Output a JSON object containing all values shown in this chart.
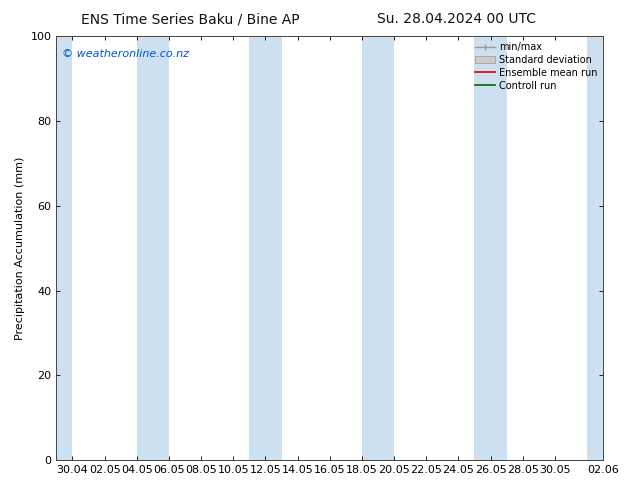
{
  "title_left": "ENS Time Series Baku / Bine AP",
  "title_right": "Su. 28.04.2024 00 UTC",
  "ylabel": "Precipitation Accumulation (mm)",
  "ylim": [
    0,
    100
  ],
  "yticks": [
    0,
    20,
    40,
    60,
    80,
    100
  ],
  "watermark": "© weatheronline.co.nz",
  "watermark_color": "#0055cc",
  "background_color": "#ffffff",
  "plot_bg_color": "#ffffff",
  "shaded_band_color": "#cce0f0",
  "xtick_labels": [
    "30.04",
    "02.05",
    "04.05",
    "06.05",
    "08.05",
    "10.05",
    "12.05",
    "14.05",
    "16.05",
    "18.05",
    "20.05",
    "22.05",
    "24.05",
    "26.05",
    "28.05",
    "30.05",
    "02.06"
  ],
  "shaded_bands": [
    [
      0,
      1
    ],
    [
      5,
      7
    ],
    [
      12,
      14
    ],
    [
      19,
      21
    ],
    [
      26,
      28
    ],
    [
      33,
      35
    ]
  ],
  "x_min": 0,
  "x_max": 34,
  "xtick_positions": [
    1,
    3,
    5,
    7,
    9,
    11,
    13,
    15,
    17,
    19,
    21,
    23,
    25,
    27,
    29,
    31,
    34
  ],
  "legend_labels": [
    "min/max",
    "Standard deviation",
    "Ensemble mean run",
    "Controll run"
  ],
  "title_fontsize": 10,
  "axis_label_fontsize": 8,
  "tick_label_fontsize": 8,
  "watermark_fontsize": 8,
  "legend_fontsize": 7
}
